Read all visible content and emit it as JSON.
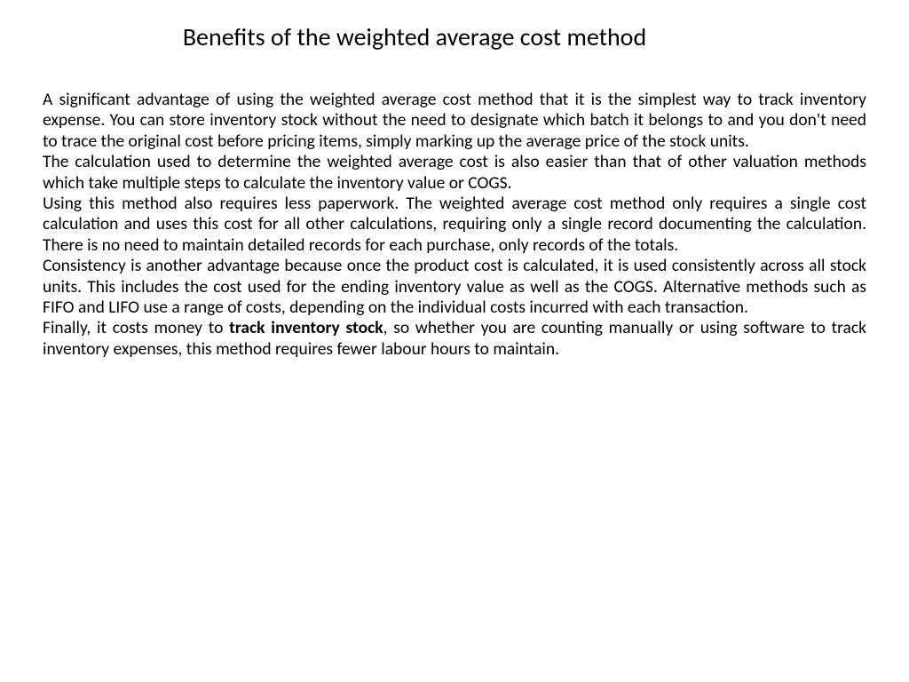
{
  "title": "Benefits of the weighted average cost method",
  "paragraphs": {
    "p1": "A significant advantage of using the weighted average cost method that it is the simplest way to track inventory expense. You can store inventory stock without the need to designate which batch it belongs to and you don't need to trace the original cost before pricing items, simply marking up the average price of the stock units.",
    "p2": "The calculation used to determine the weighted average cost is also easier than that of other valuation methods which take multiple steps to calculate the inventory value or COGS.",
    "p3": "Using this method also requires less paperwork. The weighted average cost method only requires a single cost calculation and uses this cost for all other calculations, requiring only a single record documenting the calculation. There is no need to maintain detailed records for each purchase, only records of the totals.",
    "p4": "Consistency is another advantage because once the product cost is calculated, it is used consistently across all stock units. This includes the cost used for the ending inventory value as well as the COGS. Alternative methods such as FIFO and LIFO use a range of costs, depending on the individual costs incurred with each transaction.",
    "p5a": "Finally, it costs money to ",
    "p5_bold": "track inventory stock",
    "p5b": ", so whether you are counting manually or using software to track inventory expenses, this method requires fewer labour hours to maintain."
  },
  "style": {
    "background_color": "#ffffff",
    "text_color": "#000000",
    "title_fontsize": 28,
    "body_fontsize": 19.5,
    "font_family": "Calibri"
  }
}
